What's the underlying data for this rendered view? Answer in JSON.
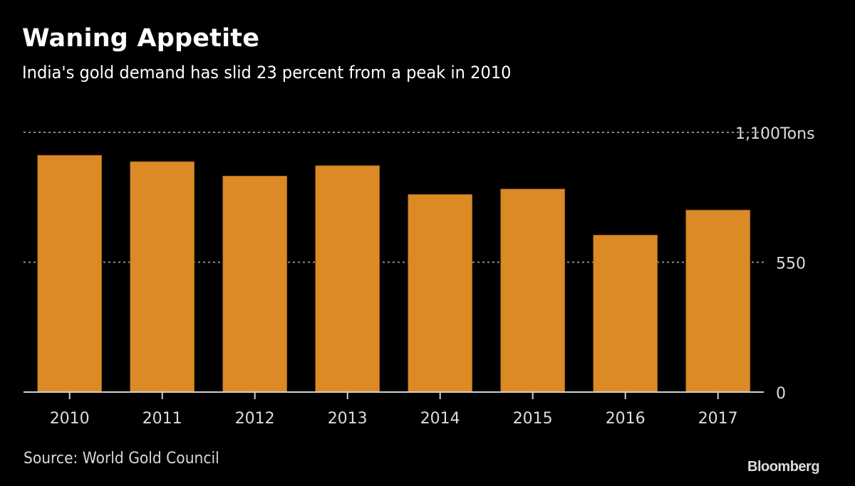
{
  "header": {
    "title": "Waning Appetite",
    "subtitle": "India's gold demand has slid 23 percent from a peak in 2010"
  },
  "footer": {
    "source": "Source: World Gold Council",
    "brand": "Bloomberg"
  },
  "colors": {
    "background": "#000000",
    "bar": "#dc8a26",
    "bar_edge": "#8a5518",
    "gridline": "#8c8c8c",
    "axis": "#cfcfcf",
    "label": "#dcdcdc"
  },
  "chart_data": {
    "type": "bar",
    "title": "Waning Appetite",
    "subtitle": "India's gold demand has slid 23 percent from a peak in 2010",
    "xlabel": "",
    "ylabel": "Tons",
    "unit": "Tons",
    "categories": [
      "2010",
      "2011",
      "2012",
      "2013",
      "2014",
      "2015",
      "2016",
      "2017"
    ],
    "series": [
      {
        "name": "India gold demand",
        "values": [
          1003,
          976,
          915,
          959,
          837,
          860,
          665,
          771
        ]
      }
    ],
    "ylim": [
      0,
      1100
    ],
    "yticks": [
      0,
      550,
      1100
    ],
    "ytick_labels": [
      "0",
      "550",
      "1,100Tons"
    ],
    "y_axis_side": "right",
    "grid": true,
    "grid_style": "dotted",
    "legend": "none",
    "source": "Source: World Gold Council"
  }
}
